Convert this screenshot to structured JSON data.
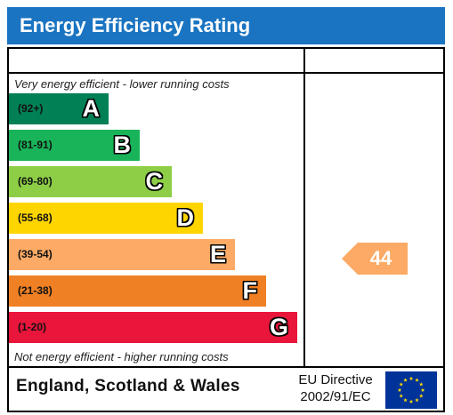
{
  "title": "Energy Efficiency Rating",
  "top_note": "Very energy efficient - lower running costs",
  "bottom_note": "Not energy efficient - higher running costs",
  "bands": [
    {
      "range": "(92+)",
      "letter": "A",
      "color": "#008054"
    },
    {
      "range": "(81-91)",
      "letter": "B",
      "color": "#19b459"
    },
    {
      "range": "(69-80)",
      "letter": "C",
      "color": "#8dce46"
    },
    {
      "range": "(55-68)",
      "letter": "D",
      "color": "#ffd500"
    },
    {
      "range": "(39-54)",
      "letter": "E",
      "color": "#fcaa65"
    },
    {
      "range": "(21-38)",
      "letter": "F",
      "color": "#ef8023"
    },
    {
      "range": "(1-20)",
      "letter": "G",
      "color": "#e9153b"
    }
  ],
  "current_rating": {
    "value": "44",
    "color": "#fcaa65"
  },
  "footer": {
    "region": "England, Scotland & Wales",
    "directive_line1": "EU Directive",
    "directive_line2": "2002/91/EC"
  },
  "header_color": "#1a74c1",
  "flag_icon": "eu-flag-icon"
}
